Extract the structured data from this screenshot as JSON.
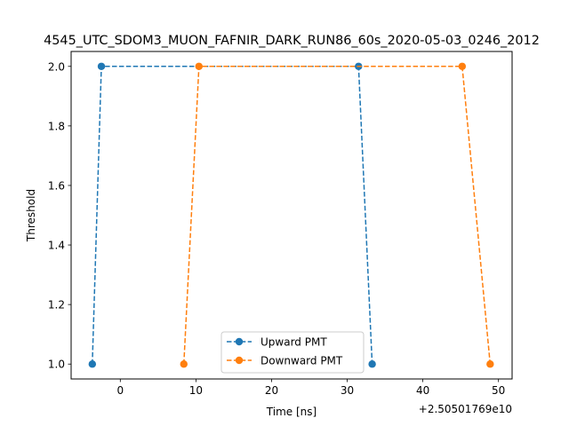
{
  "chart_data": {
    "type": "line",
    "title": "4545_UTC_SDOM3_MUON_FAFNIR_DARK_RUN86_60s_2020-05-03_0246_2012",
    "xlabel": "Time [ns]",
    "ylabel": "Threshold",
    "x_offset_label": "+2.50501769e10",
    "xlim": [
      -6.5,
      51.8
    ],
    "ylim": [
      0.95,
      2.05
    ],
    "x_ticks": [
      0,
      10,
      20,
      30,
      40,
      50
    ],
    "y_ticks": [
      1.0,
      1.2,
      1.4,
      1.6,
      1.8,
      2.0
    ],
    "x_tick_labels": [
      "0",
      "10",
      "20",
      "30",
      "40",
      "50"
    ],
    "y_tick_labels": [
      "1.0",
      "1.2",
      "1.4",
      "1.6",
      "1.8",
      "2.0"
    ],
    "legend_position": "lower-center",
    "grid": false,
    "series": [
      {
        "name": "Upward PMT",
        "color": "#1f77b4",
        "marker": "circle",
        "linestyle": "dashed",
        "x": [
          -3.7,
          -2.5,
          31.5,
          33.3
        ],
        "y": [
          1.0,
          2.0,
          2.0,
          1.0
        ]
      },
      {
        "name": "Downward PMT",
        "color": "#ff7f0e",
        "marker": "circle",
        "linestyle": "dashed",
        "x": [
          8.4,
          10.4,
          45.2,
          48.9
        ],
        "y": [
          1.0,
          2.0,
          2.0,
          1.0
        ]
      }
    ]
  }
}
